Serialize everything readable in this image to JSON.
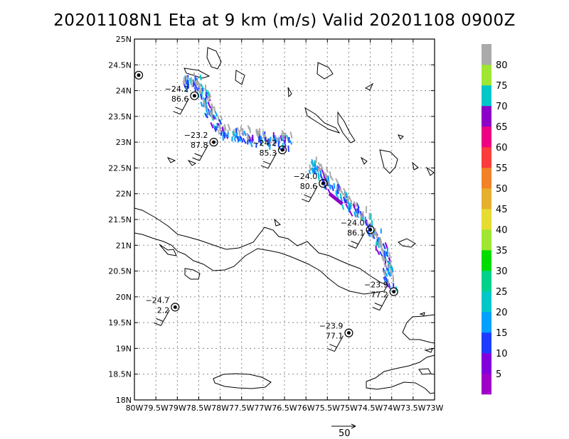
{
  "title": "20201108N1 Eta at 9 km (m/s) Valid 20201108 0900Z",
  "axes": {
    "lat_labels": [
      "18N",
      "18.5N",
      "19N",
      "19.5N",
      "20N",
      "20.5N",
      "21N",
      "21.5N",
      "22N",
      "22.5N",
      "23N",
      "23.5N",
      "24N",
      "24.5N",
      "25N"
    ],
    "lon_labels": [
      "80W",
      "79.5W",
      "79W",
      "78.5W",
      "78W",
      "77.5W",
      "77W",
      "76.5W",
      "76W",
      "75.5W",
      "75W",
      "74.5W",
      "74W",
      "73.5W",
      "73W"
    ],
    "lat_range": [
      18,
      25
    ],
    "lon_range": [
      -80,
      -73
    ]
  },
  "colorbar": {
    "labels": [
      "5",
      "10",
      "15",
      "20",
      "25",
      "30",
      "35",
      "40",
      "45",
      "50",
      "55",
      "60",
      "65",
      "70",
      "75",
      "80"
    ],
    "colors": [
      "#a000c8",
      "#8200dc",
      "#1e3cff",
      "#00a0ff",
      "#00c8c8",
      "#00d28c",
      "#00dc00",
      "#a0e632",
      "#e6dc32",
      "#e6af2d",
      "#f08228",
      "#fa3c3c",
      "#f00082",
      "#8c00c8",
      "#00c8c8",
      "#a0e632",
      "#aaaaaa"
    ]
  },
  "reference_vector": {
    "label": "50"
  },
  "storms": [
    {
      "lat": 24.3,
      "lon": -79.9,
      "pressure": "",
      "wind": ""
    },
    {
      "lat": 23.9,
      "lon": -78.6,
      "pressure": "−24.2",
      "wind": "86.6"
    },
    {
      "lat": 23.0,
      "lon": -78.15,
      "pressure": "−23.2",
      "wind": "87.8"
    },
    {
      "lat": 22.85,
      "lon": -76.55,
      "pressure": "−24.2",
      "wind": "85.3"
    },
    {
      "lat": 22.2,
      "lon": -75.6,
      "pressure": "−24.0",
      "wind": "80.6"
    },
    {
      "lat": 21.3,
      "lon": -74.5,
      "pressure": "−24.0",
      "wind": "86.1"
    },
    {
      "lat": 20.1,
      "lon": -73.95,
      "pressure": "−23.9",
      "wind": "77.2"
    },
    {
      "lat": 19.8,
      "lon": -79.05,
      "pressure": "−24.7",
      "wind": "2.2"
    },
    {
      "lat": 19.3,
      "lon": -75.0,
      "pressure": "−23.9",
      "wind": "77.1"
    }
  ],
  "track_points": [
    [
      -78.8,
      24.05
    ],
    [
      -78.55,
      24.05
    ],
    [
      -78.35,
      23.85
    ],
    [
      -78.3,
      23.6
    ],
    [
      -78.15,
      23.4
    ],
    [
      -77.95,
      23.15
    ],
    [
      -77.7,
      23.05
    ],
    [
      -77.4,
      23.0
    ],
    [
      -77.15,
      22.98
    ],
    [
      -76.9,
      22.95
    ],
    [
      -76.6,
      22.92
    ],
    [
      -76.4,
      22.88
    ],
    [
      -75.9,
      22.45
    ],
    [
      -75.65,
      22.3
    ],
    [
      -75.45,
      22.15
    ],
    [
      -75.25,
      21.95
    ],
    [
      -75.0,
      21.75
    ],
    [
      -74.8,
      21.55
    ],
    [
      -74.55,
      21.35
    ],
    [
      -74.35,
      21.1
    ],
    [
      -74.2,
      20.85
    ],
    [
      -74.1,
      20.6
    ],
    [
      -74.05,
      20.35
    ],
    [
      -74.0,
      20.15
    ]
  ]
}
